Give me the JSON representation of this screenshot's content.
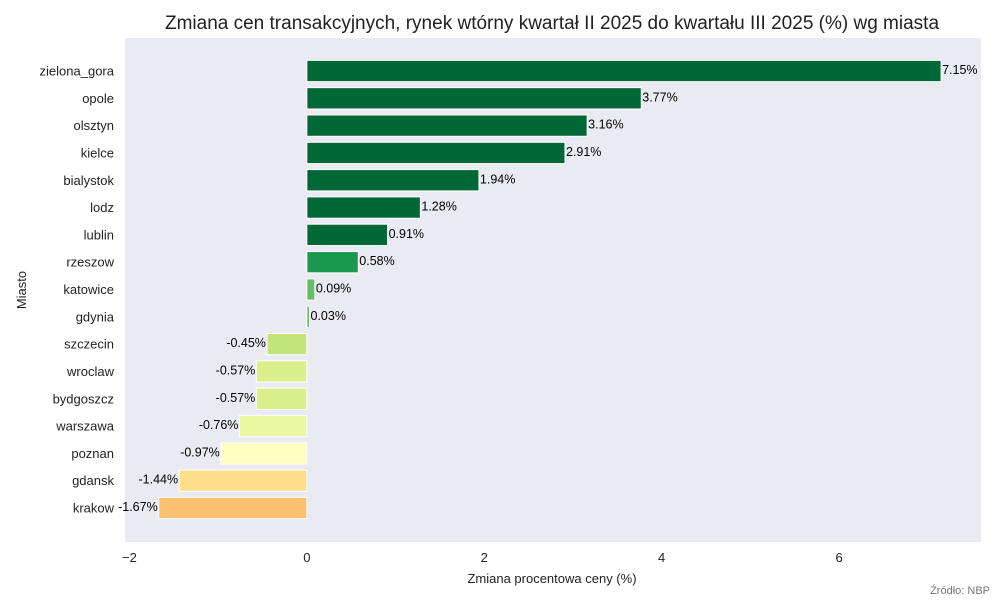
{
  "chart_data": {
    "type": "bar",
    "orientation": "horizontal",
    "title": "Zmiana cen transakcyjnych, rynek wtórny kwartał II 2025 do kwartału III 2025 (%) wg miasta",
    "xlabel": "Zmiana procentowa ceny (%)",
    "ylabel": "Miasto",
    "xlim": [
      -2.05,
      7.6
    ],
    "xticks": [
      -2,
      0,
      2,
      4,
      6
    ],
    "xtick_labels": [
      "−2",
      "0",
      "2",
      "4",
      "6"
    ],
    "grid": false,
    "categories": [
      "zielona_gora",
      "opole",
      "olsztyn",
      "kielce",
      "bialystok",
      "lodz",
      "lublin",
      "rzeszow",
      "katowice",
      "gdynia",
      "szczecin",
      "wroclaw",
      "bydgoszcz",
      "warszawa",
      "poznan",
      "gdansk",
      "krakow"
    ],
    "values": [
      7.15,
      3.77,
      3.16,
      2.91,
      1.94,
      1.28,
      0.91,
      0.58,
      0.09,
      0.03,
      -0.45,
      -0.57,
      -0.57,
      -0.76,
      -0.97,
      -1.44,
      -1.67
    ],
    "value_labels": [
      "7.15%",
      "3.77%",
      "3.16%",
      "2.91%",
      "1.94%",
      "1.28%",
      "0.91%",
      "0.58%",
      "0.09%",
      "0.03%",
      "-0.45%",
      "-0.57%",
      "-0.57%",
      "-0.76%",
      "-0.97%",
      "-1.44%",
      "-1.67%"
    ],
    "colors": [
      "#006837",
      "#006837",
      "#006837",
      "#006837",
      "#006837",
      "#006837",
      "#006837",
      "#1a9850",
      "#66bd63",
      "#66bd63",
      "#c2e47a",
      "#d9ef8b",
      "#d9ef8b",
      "#e9f6a2",
      "#ffffbf",
      "#fee08b",
      "#fdc070"
    ],
    "plot_background": "#eaeaf2",
    "source": "Źródło: NBP"
  }
}
